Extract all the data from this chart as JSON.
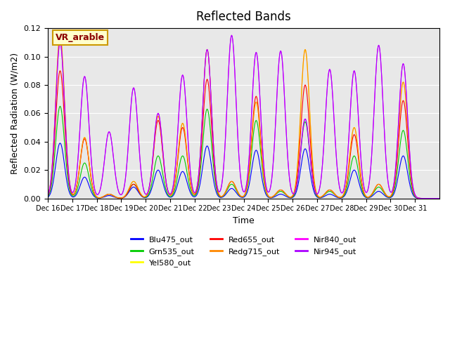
{
  "title": "Reflected Bands",
  "xlabel": "Time",
  "ylabel": "Reflected Radiation (W/m2)",
  "annotation": "VR_arable",
  "ylim": [
    0,
    0.12
  ],
  "background_color": "#e8e8e8",
  "series": [
    {
      "label": "Blu475_out",
      "color": "#0000ff"
    },
    {
      "label": "Grn535_out",
      "color": "#00cc00"
    },
    {
      "label": "Yel580_out",
      "color": "#ffff00"
    },
    {
      "label": "Red655_out",
      "color": "#ff0000"
    },
    {
      "label": "Redg715_out",
      "color": "#ff8800"
    },
    {
      "label": "Nir840_out",
      "color": "#ff00ff"
    },
    {
      "label": "Nir945_out",
      "color": "#aa00ff"
    }
  ],
  "x_tick_labels": [
    "Dec 16",
    "Dec 17",
    "Dec 18",
    "Dec 19",
    "Dec 20",
    "Dec 21",
    "Dec 22",
    "Dec 23",
    "Dec 24",
    "Dec 25",
    "Dec 26",
    "Dec 27",
    "Dec 28",
    "Dec 29",
    "Dec 30",
    "Dec 31"
  ],
  "peak_heights": {
    "Blu475_out": [
      0.039,
      0.015,
      0.002,
      0.008,
      0.02,
      0.019,
      0.037,
      0.007,
      0.034,
      0.003,
      0.035,
      0.003,
      0.02,
      0.005,
      0.03,
      0.0
    ],
    "Grn535_out": [
      0.065,
      0.025,
      0.003,
      0.01,
      0.03,
      0.03,
      0.063,
      0.01,
      0.055,
      0.005,
      0.054,
      0.005,
      0.03,
      0.008,
      0.048,
      0.0
    ],
    "Yel580_out": [
      0.115,
      0.043,
      0.003,
      0.012,
      0.058,
      0.053,
      0.105,
      0.012,
      0.068,
      0.006,
      0.105,
      0.006,
      0.05,
      0.01,
      0.082,
      0.0
    ],
    "Red655_out": [
      0.09,
      0.042,
      0.003,
      0.01,
      0.055,
      0.05,
      0.084,
      0.012,
      0.072,
      0.006,
      0.08,
      0.006,
      0.045,
      0.01,
      0.069,
      0.0
    ],
    "Redg715_out": [
      0.115,
      0.043,
      0.003,
      0.012,
      0.058,
      0.053,
      0.105,
      0.012,
      0.068,
      0.006,
      0.105,
      0.006,
      0.05,
      0.01,
      0.082,
      0.0
    ],
    "Nir840_out": [
      0.11,
      0.086,
      0.047,
      0.078,
      0.06,
      0.087,
      0.105,
      0.115,
      0.103,
      0.104,
      0.056,
      0.091,
      0.09,
      0.108,
      0.095,
      0.0
    ],
    "Nir945_out": [
      0.11,
      0.086,
      0.047,
      0.078,
      0.06,
      0.087,
      0.105,
      0.115,
      0.103,
      0.104,
      0.056,
      0.091,
      0.09,
      0.108,
      0.095,
      0.0
    ]
  }
}
